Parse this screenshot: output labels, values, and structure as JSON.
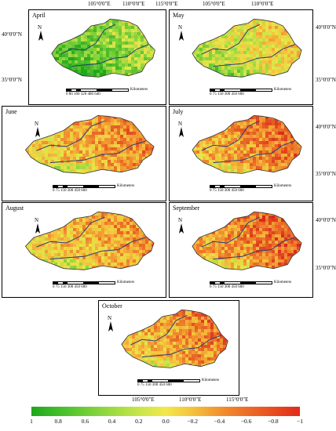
{
  "coords": {
    "top_left_1": "105°0'0\"E",
    "top_left_2": "110°0'0\"E",
    "top_left_3": "115°0'0\"E",
    "top_right_1": "105°0'0\"E",
    "top_right_2": "110°0'0\"E",
    "left_lat_1": "40°0'0\"N",
    "left_lat_2": "35°0'0\"N",
    "right_lat_1": "40°0'0\"N",
    "right_lat_2": "35°0'0\"N",
    "bottom_1": "105°0'0\"E",
    "bottom_2": "110°0'0\"E",
    "bottom_3": "115°0'0\"E"
  },
  "north_label": "N",
  "scale_unit": "Kilometers",
  "scale_first": "0  80 160     320     480     640",
  "scale_other": "0  75 150     300     450     600",
  "months": [
    "April",
    "May",
    "June",
    "July",
    "August",
    "September",
    "October"
  ],
  "legend": {
    "ticks": [
      "1",
      "0.8",
      "0.6",
      "0.4",
      "0.2",
      "0.0",
      "−0.2",
      "−0.4",
      "−0.6",
      "−0.8",
      "−1"
    ],
    "colors": {
      "high": "#1fa81b",
      "mid": "#f2e84a",
      "low": "#e22b1a"
    }
  },
  "month_tone": [
    0.25,
    0.45,
    0.65,
    0.72,
    0.62,
    0.75,
    0.68
  ]
}
